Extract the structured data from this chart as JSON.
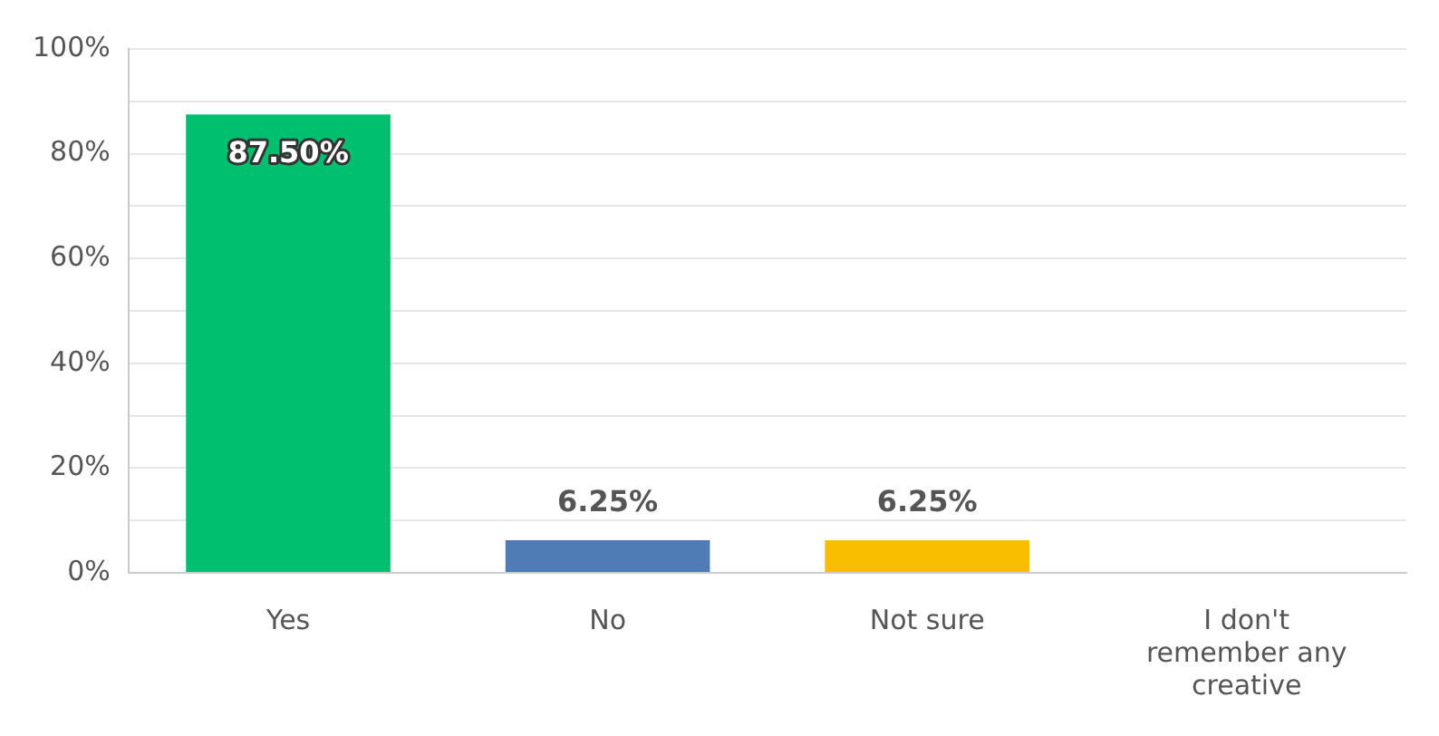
{
  "chart_data": {
    "type": "bar",
    "categories": [
      "Yes",
      "No",
      "Not sure",
      "I don't remember any creative"
    ],
    "values": [
      87.5,
      6.25,
      6.25,
      0
    ],
    "colors": [
      "#00bf6f",
      "#507cb6",
      "#f9be00",
      "#6bc8cd"
    ],
    "value_labels": [
      "87.50%",
      "6.25%",
      "6.25%",
      null
    ],
    "ylim": [
      0,
      100
    ],
    "yticks": [
      {
        "value": 0,
        "label": "0%"
      },
      {
        "value": 10,
        "label": null
      },
      {
        "value": 20,
        "label": "20%"
      },
      {
        "value": 30,
        "label": null
      },
      {
        "value": 40,
        "label": "40%"
      },
      {
        "value": 50,
        "label": null
      },
      {
        "value": 60,
        "label": "60%"
      },
      {
        "value": 70,
        "label": null
      },
      {
        "value": 80,
        "label": "80%"
      },
      {
        "value": 90,
        "label": null
      },
      {
        "value": 100,
        "label": "100%"
      }
    ],
    "grid": "y",
    "legend": false
  }
}
